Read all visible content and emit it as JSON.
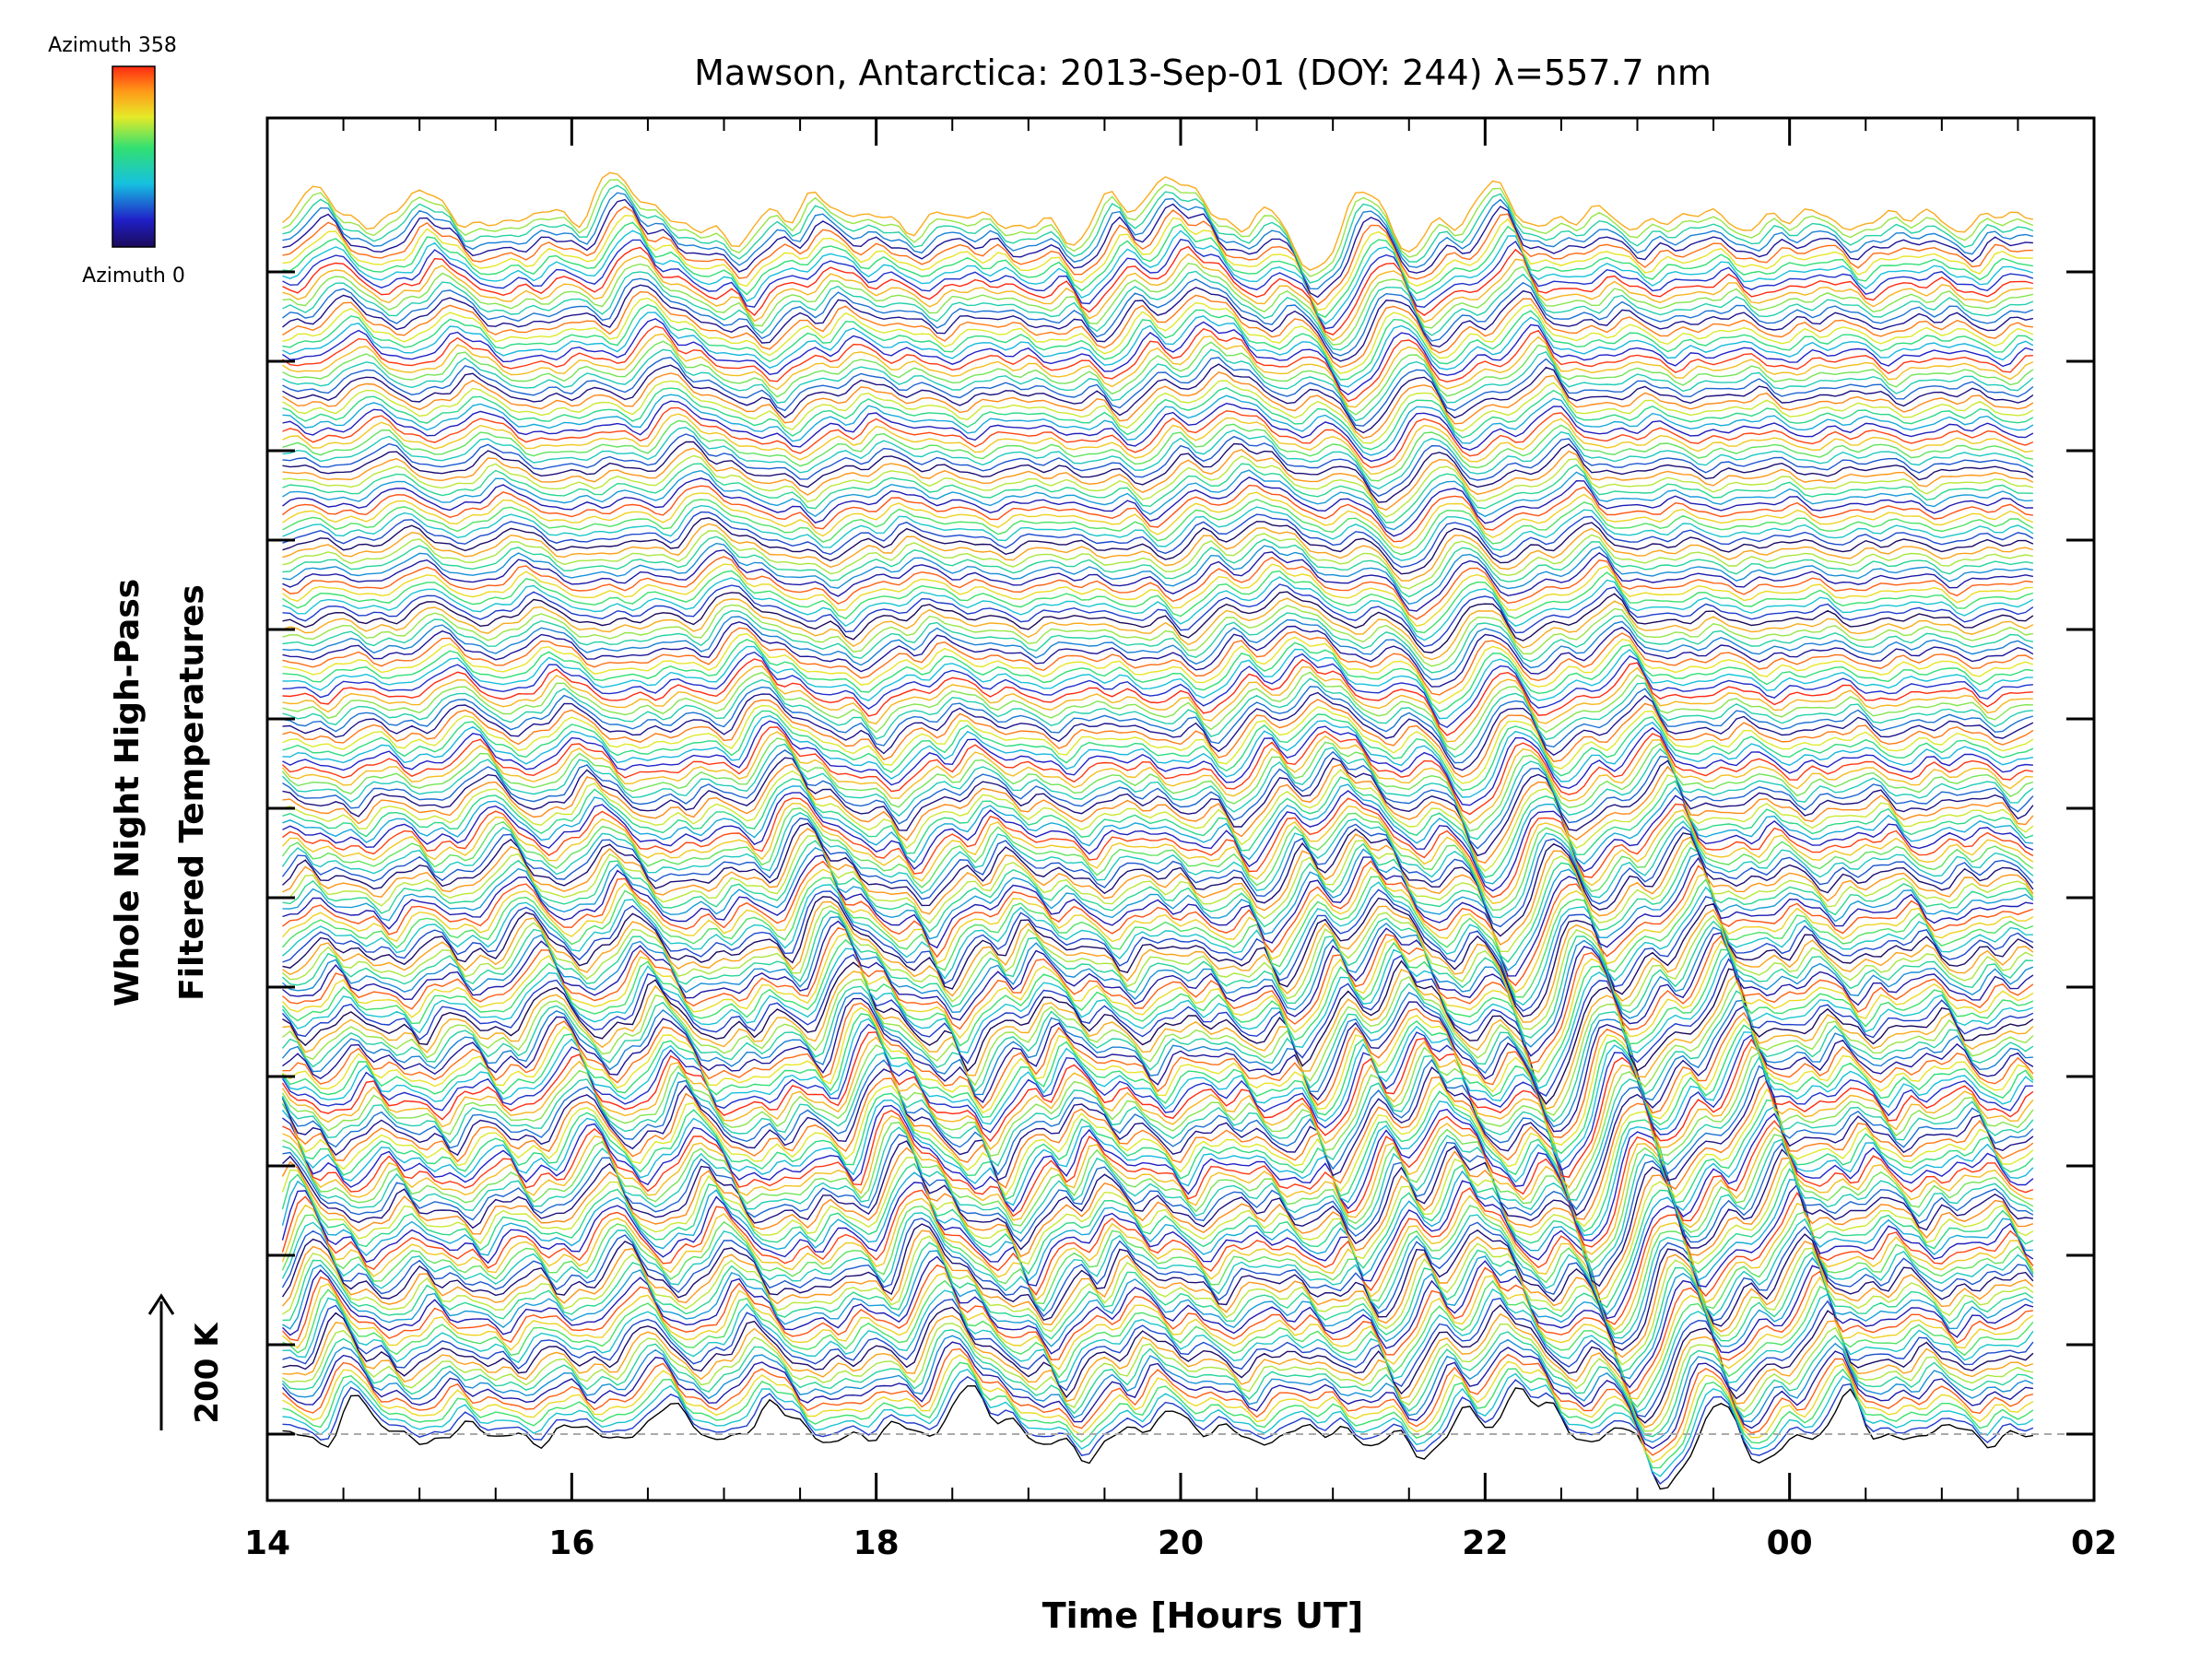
{
  "chart_data": {
    "type": "line",
    "title": "Mawson, Antarctica: 2013-Sep-01 (DOY: 244) λ=557.7 nm",
    "xlabel": "Time [Hours UT]",
    "ylabel_lines": [
      "Whole Night High-Pass",
      "Filtered Temperatures"
    ],
    "x_tick_labels": [
      "14",
      "16",
      "18",
      "20",
      "22",
      "00",
      "02"
    ],
    "x_range_hours": [
      14,
      26
    ],
    "scale_bar_label": "200 K",
    "colorbar": {
      "top_label": "Azimuth 358",
      "bottom_label": "Azimuth 0",
      "min": 0,
      "max": 358,
      "colormap": "rainbow (purple → blue → cyan → green → yellow → red)"
    },
    "series_count": 180,
    "series_azimuth_range_deg": [
      0,
      358
    ],
    "time_span_hours": [
      14.1,
      25.6
    ],
    "time_step_hours": 0.05,
    "baseline_style": "dashed gray line at lowest trace",
    "note_values": "Individual temperature values are not printed on the figure; traces are qualitatively reproduced (stacked offset lines, colored by azimuth).",
    "features_hours": [
      {
        "t": 14.6,
        "kind": "peak"
      },
      {
        "t": 16.6,
        "kind": "peak"
      },
      {
        "t": 17.3,
        "kind": "peak"
      },
      {
        "t": 18.6,
        "kind": "strong peak"
      },
      {
        "t": 19.4,
        "kind": "trough"
      },
      {
        "t": 19.9,
        "kind": "peak"
      },
      {
        "t": 21.6,
        "kind": "trough"
      },
      {
        "t": 21.9,
        "kind": "peak"
      },
      {
        "t": 22.2,
        "kind": "peak"
      },
      {
        "t": 22.4,
        "kind": "peak"
      },
      {
        "t": 23.2,
        "kind": "deep trough"
      },
      {
        "t": 23.5,
        "kind": "peak"
      },
      {
        "t": 23.8,
        "kind": "trough"
      },
      {
        "t": 24.4,
        "kind": "peak"
      }
    ]
  }
}
